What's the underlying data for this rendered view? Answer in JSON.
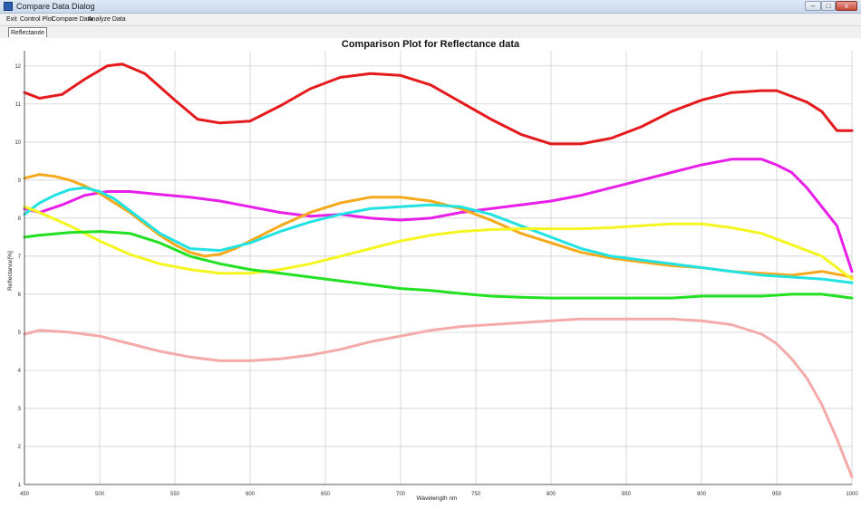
{
  "window": {
    "title": "Compare Data Dialog",
    "minimize_glyph": "–",
    "maximize_glyph": "□",
    "close_glyph": "x",
    "icon": "app-icon"
  },
  "menu": {
    "items": [
      "Exit",
      "Control Plot",
      "Compare Data",
      "Analyze Data"
    ]
  },
  "tabs": {
    "items": [
      "Reflectance"
    ],
    "scroll_glyph": "⟨"
  },
  "chart_data": {
    "type": "line",
    "title": "Comparison Plot for Reflectance data",
    "xlabel": "Wavelength nm",
    "ylabel": "Reflectance[%]",
    "xlim": [
      450,
      1000
    ],
    "ylim": [
      1,
      12.4
    ],
    "x_ticks": [
      450,
      500,
      550,
      600,
      650,
      700,
      750,
      800,
      850,
      900,
      950,
      1000
    ],
    "y_ticks": [
      1,
      2,
      3,
      4,
      5,
      6,
      7,
      8,
      9,
      10,
      11,
      12
    ],
    "grid": true,
    "legend": false,
    "series": [
      {
        "color": "#e41a1c",
        "x": [
          450,
          460,
          475,
          490,
          505,
          515,
          530,
          550,
          565,
          580,
          600,
          620,
          640,
          660,
          680,
          700,
          720,
          740,
          760,
          780,
          800,
          820,
          840,
          860,
          880,
          900,
          920,
          940,
          950,
          960,
          970,
          980,
          990,
          1000
        ],
        "y": [
          11.3,
          11.15,
          11.25,
          11.65,
          12.0,
          12.05,
          11.8,
          11.1,
          10.6,
          10.5,
          10.55,
          10.95,
          11.4,
          11.7,
          11.8,
          11.75,
          11.5,
          11.05,
          10.6,
          10.2,
          9.95,
          9.95,
          10.1,
          10.4,
          10.8,
          11.1,
          11.3,
          11.35,
          11.35,
          11.2,
          11.05,
          10.8,
          10.3,
          10.3
        ]
      },
      {
        "color": "#e81fe8",
        "x": [
          450,
          460,
          475,
          490,
          505,
          520,
          540,
          560,
          580,
          600,
          620,
          640,
          660,
          680,
          700,
          720,
          740,
          760,
          780,
          800,
          820,
          840,
          860,
          880,
          900,
          920,
          940,
          950,
          960,
          970,
          980,
          990,
          1000
        ],
        "y": [
          8.25,
          8.15,
          8.35,
          8.6,
          8.7,
          8.7,
          8.62,
          8.55,
          8.45,
          8.3,
          8.15,
          8.05,
          8.1,
          8.0,
          7.95,
          8.0,
          8.15,
          8.25,
          8.35,
          8.45,
          8.6,
          8.8,
          9.0,
          9.2,
          9.4,
          9.55,
          9.55,
          9.4,
          9.2,
          8.8,
          8.3,
          7.8,
          6.6
        ]
      },
      {
        "color": "#f5a91b",
        "x": [
          450,
          460,
          470,
          480,
          490,
          500,
          510,
          520,
          530,
          540,
          550,
          560,
          570,
          580,
          590,
          600,
          620,
          640,
          660,
          680,
          700,
          720,
          740,
          760,
          780,
          800,
          820,
          840,
          860,
          880,
          900,
          920,
          940,
          960,
          980,
          1000
        ],
        "y": [
          9.05,
          9.15,
          9.1,
          9.0,
          8.85,
          8.65,
          8.4,
          8.15,
          7.85,
          7.55,
          7.3,
          7.1,
          7.0,
          7.05,
          7.2,
          7.4,
          7.8,
          8.15,
          8.4,
          8.55,
          8.55,
          8.45,
          8.25,
          7.95,
          7.6,
          7.35,
          7.1,
          6.95,
          6.85,
          6.75,
          6.7,
          6.6,
          6.55,
          6.5,
          6.6,
          6.45
        ]
      },
      {
        "color": "#22e2e2",
        "x": [
          450,
          460,
          470,
          480,
          490,
          500,
          510,
          520,
          540,
          560,
          580,
          600,
          620,
          640,
          660,
          680,
          700,
          720,
          740,
          760,
          780,
          800,
          820,
          840,
          860,
          880,
          900,
          920,
          940,
          960,
          980,
          1000
        ],
        "y": [
          8.1,
          8.4,
          8.6,
          8.75,
          8.8,
          8.7,
          8.5,
          8.2,
          7.6,
          7.2,
          7.15,
          7.35,
          7.65,
          7.9,
          8.1,
          8.25,
          8.3,
          8.35,
          8.3,
          8.1,
          7.8,
          7.5,
          7.2,
          7.0,
          6.9,
          6.8,
          6.7,
          6.6,
          6.5,
          6.45,
          6.4,
          6.3
        ]
      },
      {
        "color": "#f5f51f",
        "x": [
          450,
          460,
          480,
          500,
          520,
          540,
          560,
          580,
          600,
          620,
          640,
          660,
          680,
          700,
          720,
          740,
          760,
          780,
          800,
          820,
          840,
          860,
          880,
          900,
          920,
          940,
          960,
          980,
          1000
        ],
        "y": [
          8.3,
          8.15,
          7.8,
          7.4,
          7.05,
          6.8,
          6.65,
          6.55,
          6.55,
          6.65,
          6.8,
          7.0,
          7.2,
          7.4,
          7.55,
          7.65,
          7.7,
          7.72,
          7.72,
          7.72,
          7.75,
          7.8,
          7.85,
          7.85,
          7.75,
          7.6,
          7.3,
          7.0,
          6.4
        ]
      },
      {
        "color": "#22e022",
        "x": [
          450,
          460,
          480,
          500,
          520,
          540,
          560,
          580,
          600,
          620,
          640,
          660,
          680,
          700,
          720,
          740,
          760,
          780,
          800,
          820,
          840,
          860,
          880,
          900,
          920,
          940,
          960,
          980,
          1000
        ],
        "y": [
          7.5,
          7.55,
          7.62,
          7.65,
          7.6,
          7.35,
          7.0,
          6.8,
          6.65,
          6.55,
          6.45,
          6.35,
          6.25,
          6.15,
          6.1,
          6.02,
          5.95,
          5.92,
          5.9,
          5.9,
          5.9,
          5.9,
          5.9,
          5.95,
          5.95,
          5.95,
          6.0,
          6.0,
          5.9
        ]
      },
      {
        "color": "#f5aaaa",
        "x": [
          450,
          460,
          480,
          500,
          520,
          540,
          560,
          580,
          600,
          620,
          640,
          660,
          680,
          700,
          720,
          740,
          760,
          780,
          800,
          820,
          840,
          860,
          880,
          900,
          920,
          940,
          950,
          960,
          970,
          980,
          990,
          1000
        ],
        "y": [
          4.95,
          5.05,
          5.0,
          4.9,
          4.7,
          4.5,
          4.35,
          4.25,
          4.25,
          4.3,
          4.4,
          4.55,
          4.75,
          4.9,
          5.05,
          5.15,
          5.2,
          5.25,
          5.3,
          5.35,
          5.35,
          5.35,
          5.35,
          5.3,
          5.2,
          4.95,
          4.7,
          4.3,
          3.8,
          3.1,
          2.2,
          1.2
        ]
      }
    ]
  }
}
